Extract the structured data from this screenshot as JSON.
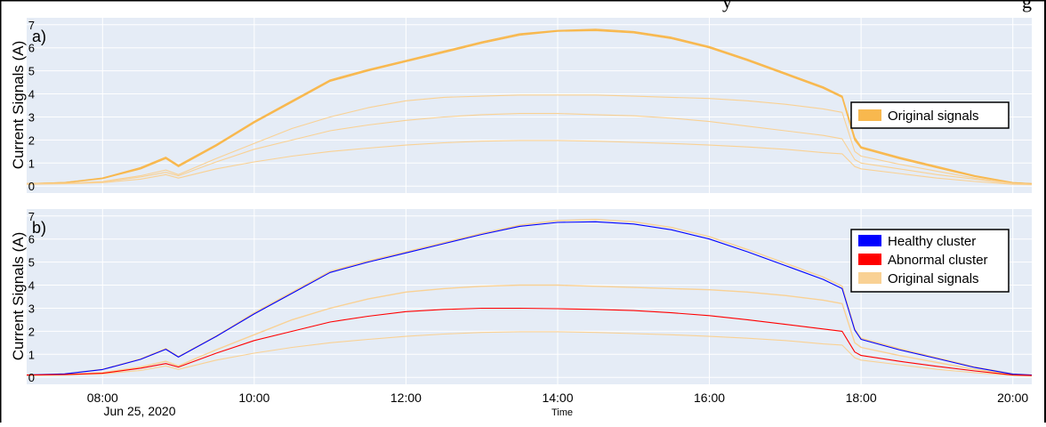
{
  "header_fragment": "y",
  "header_fragment_right": "g",
  "time_label": "Time",
  "date_label": "Jun 25, 2020",
  "colors": {
    "plot_bg": "#e5ecf6",
    "original": "#f8b84e",
    "original_light": "#f9d194",
    "healthy": "#0000ff",
    "abnormal": "#ff0000"
  },
  "chart_data": [
    {
      "type": "line",
      "panel_label": "a)",
      "ylabel": "Current Signals (A)",
      "xlabel": "",
      "x_ticks": [
        "08:00",
        "10:00",
        "12:00",
        "14:00",
        "16:00",
        "18:00",
        "20:00"
      ],
      "y_ticks": [
        "0",
        "1",
        "2",
        "3",
        "4",
        "5",
        "6",
        "7"
      ],
      "xlim": [
        "07:00",
        "20:15"
      ],
      "ylim": [
        -0.3,
        7.3
      ],
      "grid": true,
      "legend_position": "right",
      "legend": [
        {
          "name": "Original signals",
          "color": "#f8b84e"
        }
      ],
      "x": [
        "07:00",
        "07:30",
        "08:00",
        "08:30",
        "08:50",
        "09:00",
        "09:30",
        "10:00",
        "10:30",
        "11:00",
        "11:30",
        "12:00",
        "12:30",
        "13:00",
        "13:30",
        "14:00",
        "14:30",
        "15:00",
        "15:30",
        "16:00",
        "16:30",
        "17:00",
        "17:30",
        "17:45",
        "17:55",
        "18:00",
        "18:30",
        "19:00",
        "19:30",
        "20:00",
        "20:15"
      ],
      "series": [
        {
          "name": "Original signals",
          "color": "#f8b84e",
          "values": [
            0.1,
            0.15,
            0.35,
            0.8,
            1.25,
            0.9,
            1.8,
            2.8,
            3.7,
            4.6,
            5.05,
            5.45,
            5.85,
            6.25,
            6.6,
            6.75,
            6.8,
            6.7,
            6.45,
            6.05,
            5.5,
            4.9,
            4.3,
            3.9,
            2.1,
            1.7,
            1.25,
            0.85,
            0.45,
            0.15,
            0.1
          ]
        },
        {
          "name": "Original signals",
          "color": "#f8b84e",
          "values": [
            0.1,
            0.15,
            0.33,
            0.75,
            1.2,
            0.85,
            1.75,
            2.75,
            3.65,
            4.55,
            5.0,
            5.4,
            5.8,
            6.2,
            6.55,
            6.72,
            6.75,
            6.65,
            6.4,
            6.0,
            5.45,
            4.85,
            4.25,
            3.85,
            2.0,
            1.65,
            1.2,
            0.8,
            0.42,
            0.14,
            0.1
          ]
        },
        {
          "name": "Original signals",
          "color": "#f9d194",
          "values": [
            0.1,
            0.12,
            0.2,
            0.45,
            0.7,
            0.5,
            1.2,
            1.85,
            2.5,
            3.0,
            3.4,
            3.7,
            3.85,
            3.9,
            3.95,
            3.95,
            3.95,
            3.9,
            3.85,
            3.8,
            3.7,
            3.55,
            3.35,
            3.2,
            1.5,
            1.3,
            0.95,
            0.65,
            0.35,
            0.12,
            0.08
          ]
        },
        {
          "name": "Original signals",
          "color": "#f9d194",
          "values": [
            0.1,
            0.12,
            0.18,
            0.4,
            0.6,
            0.45,
            1.05,
            1.6,
            2.0,
            2.4,
            2.65,
            2.85,
            3.0,
            3.1,
            3.15,
            3.15,
            3.1,
            3.05,
            2.95,
            2.8,
            2.6,
            2.4,
            2.2,
            2.05,
            1.15,
            1.0,
            0.75,
            0.5,
            0.3,
            0.1,
            0.08
          ]
        },
        {
          "name": "Original signals",
          "color": "#f9d194",
          "values": [
            0.08,
            0.1,
            0.15,
            0.3,
            0.5,
            0.35,
            0.75,
            1.05,
            1.3,
            1.5,
            1.65,
            1.78,
            1.88,
            1.95,
            1.98,
            1.98,
            1.95,
            1.9,
            1.85,
            1.78,
            1.7,
            1.6,
            1.45,
            1.4,
            0.85,
            0.75,
            0.55,
            0.35,
            0.2,
            0.08,
            0.06
          ]
        }
      ]
    },
    {
      "type": "line",
      "panel_label": "b)",
      "ylabel": "Current Signals (A)",
      "xlabel": "Time",
      "x_ticks": [
        "08:00",
        "10:00",
        "12:00",
        "14:00",
        "16:00",
        "18:00",
        "20:00"
      ],
      "y_ticks": [
        "0",
        "1",
        "2",
        "3",
        "4",
        "5",
        "6",
        "7"
      ],
      "xlim": [
        "07:00",
        "20:15"
      ],
      "ylim": [
        -0.3,
        7.3
      ],
      "grid": true,
      "legend_position": "right",
      "legend": [
        {
          "name": "Healthy cluster",
          "color": "#0000ff"
        },
        {
          "name": "Abnormal cluster",
          "color": "#ff0000"
        },
        {
          "name": "Original signals",
          "color": "#f9d194"
        }
      ],
      "x": [
        "07:00",
        "07:30",
        "08:00",
        "08:30",
        "08:50",
        "09:00",
        "09:30",
        "10:00",
        "10:30",
        "11:00",
        "11:30",
        "12:00",
        "12:30",
        "13:00",
        "13:30",
        "14:00",
        "14:30",
        "15:00",
        "15:30",
        "16:00",
        "16:30",
        "17:00",
        "17:30",
        "17:45",
        "17:55",
        "18:00",
        "18:30",
        "19:00",
        "19:30",
        "20:00",
        "20:15"
      ],
      "series": [
        {
          "name": "Original signals",
          "color": "#f9d194",
          "values": [
            0.1,
            0.15,
            0.35,
            0.8,
            1.25,
            0.9,
            1.8,
            2.8,
            3.7,
            4.6,
            5.05,
            5.45,
            5.85,
            6.25,
            6.6,
            6.8,
            6.85,
            6.75,
            6.5,
            6.1,
            5.55,
            4.95,
            4.35,
            3.95,
            2.1,
            1.7,
            1.25,
            0.85,
            0.45,
            0.15,
            0.1
          ]
        },
        {
          "name": "Original signals",
          "color": "#f9d194",
          "values": [
            0.1,
            0.12,
            0.2,
            0.45,
            0.7,
            0.5,
            1.2,
            1.85,
            2.5,
            3.0,
            3.4,
            3.7,
            3.85,
            3.95,
            4.0,
            4.0,
            3.95,
            3.9,
            3.85,
            3.8,
            3.7,
            3.55,
            3.35,
            3.2,
            1.5,
            1.3,
            0.95,
            0.65,
            0.35,
            0.12,
            0.08
          ]
        },
        {
          "name": "Original signals",
          "color": "#f9d194",
          "values": [
            0.08,
            0.1,
            0.15,
            0.3,
            0.5,
            0.35,
            0.75,
            1.05,
            1.3,
            1.5,
            1.65,
            1.78,
            1.88,
            1.95,
            1.98,
            1.98,
            1.95,
            1.9,
            1.85,
            1.78,
            1.7,
            1.6,
            1.45,
            1.4,
            0.85,
            0.75,
            0.55,
            0.35,
            0.2,
            0.08,
            0.06
          ]
        },
        {
          "name": "Healthy cluster",
          "color": "#0000ff",
          "values": [
            0.1,
            0.15,
            0.34,
            0.78,
            1.22,
            0.88,
            1.78,
            2.75,
            3.65,
            4.55,
            5.0,
            5.4,
            5.8,
            6.2,
            6.55,
            6.72,
            6.75,
            6.65,
            6.4,
            6.0,
            5.45,
            4.85,
            4.25,
            3.85,
            2.05,
            1.65,
            1.2,
            0.82,
            0.43,
            0.14,
            0.1
          ]
        },
        {
          "name": "Abnormal cluster",
          "color": "#ff0000",
          "values": [
            0.1,
            0.12,
            0.18,
            0.4,
            0.6,
            0.45,
            1.05,
            1.6,
            2.0,
            2.4,
            2.65,
            2.85,
            2.95,
            3.0,
            3.0,
            2.98,
            2.95,
            2.9,
            2.8,
            2.68,
            2.5,
            2.3,
            2.1,
            2.0,
            1.1,
            0.95,
            0.7,
            0.48,
            0.28,
            0.1,
            0.08
          ]
        }
      ]
    }
  ]
}
